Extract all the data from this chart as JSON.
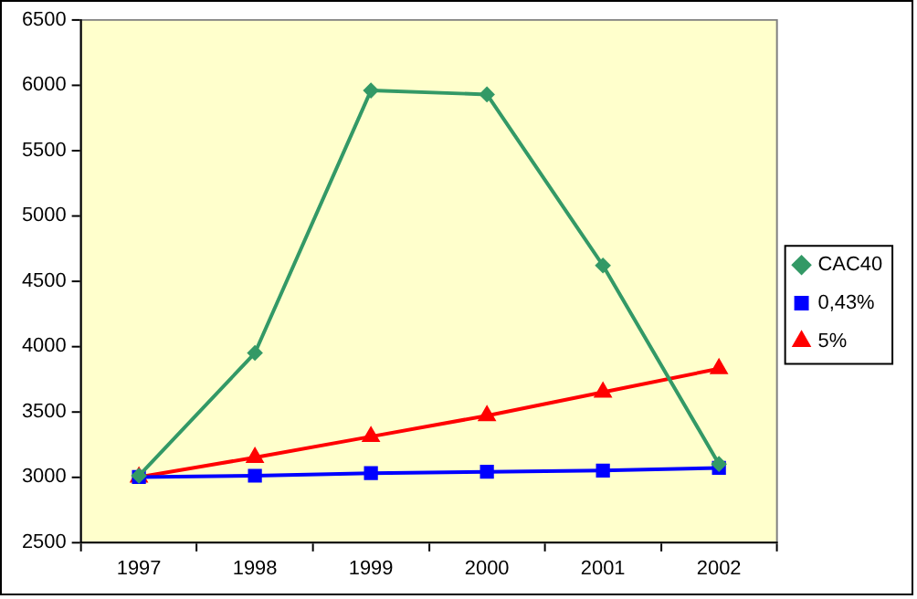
{
  "chart_data": {
    "type": "line",
    "categories": [
      "1997",
      "1998",
      "1999",
      "2000",
      "2001",
      "2002"
    ],
    "series": [
      {
        "name": "CAC40",
        "color": "#339966",
        "marker": "diamond",
        "values": [
          3010,
          3950,
          5960,
          5930,
          4620,
          3100
        ]
      },
      {
        "name": "0,43%",
        "color": "#0000ff",
        "marker": "square",
        "values": [
          3000,
          3010,
          3030,
          3040,
          3050,
          3070
        ]
      },
      {
        "name": "5%",
        "color": "#ff0000",
        "marker": "triangle",
        "values": [
          3000,
          3150,
          3310,
          3470,
          3650,
          3830
        ]
      }
    ],
    "ylim": [
      2500,
      6500
    ],
    "yticks": [
      2500,
      3000,
      3500,
      4000,
      4500,
      5000,
      5500,
      6000,
      6500
    ],
    "grid": false,
    "legend": "right"
  }
}
